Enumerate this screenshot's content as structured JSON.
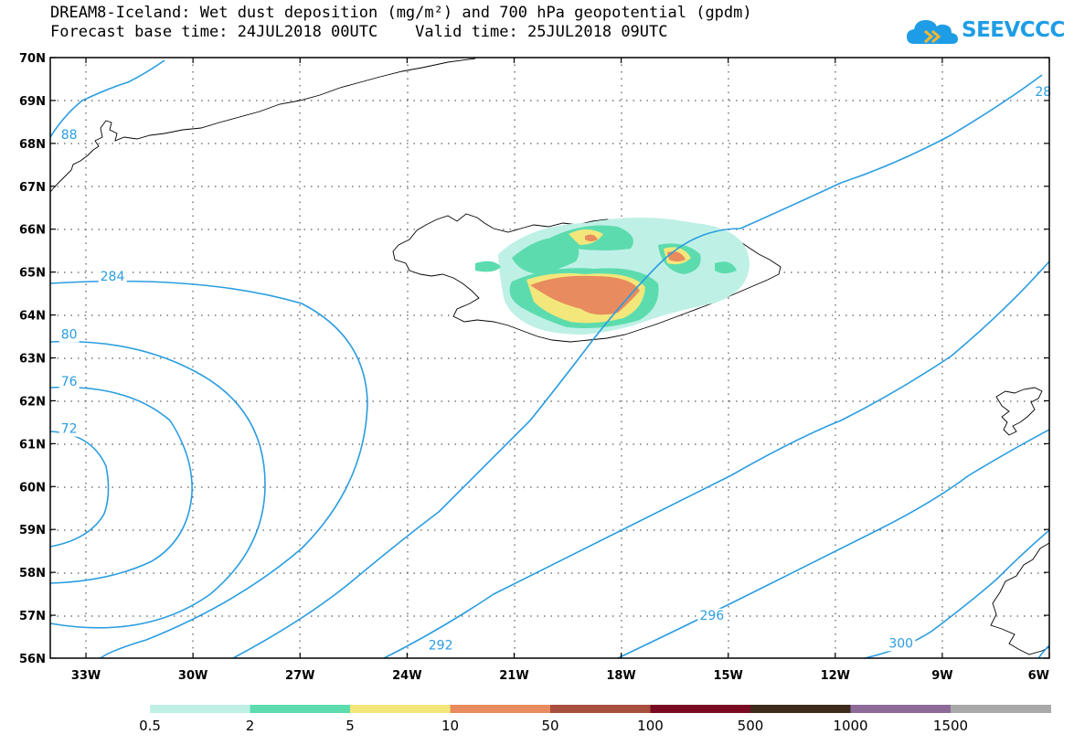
{
  "title": {
    "line1": "DREAM8-Iceland: Wet dust deposition (mg/m²) and 700 hPa geopotential (gpdm)",
    "line2": "Forecast base time: 24JUL2018 00UTC    Valid time: 25JUL2018 09UTC"
  },
  "logo": {
    "text": "SEEVCCC",
    "icon": "cloud-icon",
    "color": "#1e9de6"
  },
  "map": {
    "lon_range": [
      -34,
      -6
    ],
    "lat_range": [
      56,
      70
    ],
    "lat_ticks": [
      "70N",
      "69N",
      "68N",
      "67N",
      "66N",
      "65N",
      "64N",
      "63N",
      "62N",
      "61N",
      "60N",
      "59N",
      "58N",
      "57N",
      "56N"
    ],
    "lon_ticks": [
      "33W",
      "30W",
      "27W",
      "24W",
      "21W",
      "18W",
      "15W",
      "12W",
      "9W",
      "6W"
    ],
    "contour_labels": [
      {
        "text": "284",
        "lon": -32.6,
        "lat": 64.8
      },
      {
        "text": "80",
        "lon": -33.7,
        "lat": 63.45
      },
      {
        "text": "76",
        "lon": -33.7,
        "lat": 62.35
      },
      {
        "text": "72",
        "lon": -33.7,
        "lat": 61.25
      },
      {
        "text": "88",
        "lon": -33.7,
        "lat": 68.1
      },
      {
        "text": "292",
        "lon": -23.4,
        "lat": 56.2
      },
      {
        "text": "296",
        "lon": -15.8,
        "lat": 56.9
      },
      {
        "text": "300",
        "lon": -10.5,
        "lat": 56.25
      },
      {
        "text": "28",
        "lon": -6.4,
        "lat": 69.1
      }
    ],
    "contour_color": "#2a9de0"
  },
  "legend": {
    "colors": [
      "#bff0e6",
      "#5cdcae",
      "#f3e77b",
      "#e88b5e",
      "#a84f3e",
      "#7a0a22",
      "#3c2a1b",
      "#8e6a98",
      "#a9a9a9"
    ],
    "labels": [
      "0.5",
      "2",
      "5",
      "10",
      "50",
      "100",
      "500",
      "1000",
      "1500"
    ]
  },
  "dust_colors": {
    "light": "#bff0e6",
    "green": "#5cdcae",
    "yellow": "#f3e77b",
    "orange": "#e88b5e"
  }
}
